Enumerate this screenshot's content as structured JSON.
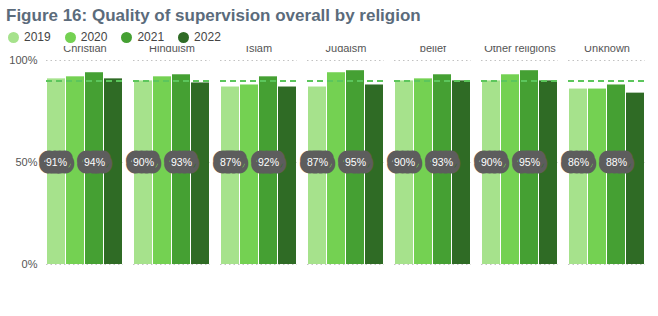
{
  "chart_data": {
    "type": "bar",
    "title": "Figure 16: Quality of supervision overall by religion",
    "categories": [
      "Christian",
      "Hinduism",
      "Islam",
      "Judaism",
      "No religious belief",
      "Other religions",
      "Unknown"
    ],
    "series": [
      {
        "name": "2019",
        "color": "#a6e28c",
        "values": [
          91,
          90,
          87,
          87,
          90,
          90,
          86
        ],
        "data_labels": true,
        "value_labels": [
          "91%",
          "90%",
          "87%",
          "87%",
          "90%",
          "90%",
          "86%"
        ]
      },
      {
        "name": "2020",
        "color": "#74d152",
        "values": [
          92,
          92,
          88,
          94,
          91,
          93,
          86
        ]
      },
      {
        "name": "2021",
        "color": "#45a033",
        "values": [
          94,
          93,
          92,
          95,
          93,
          95,
          88
        ],
        "data_labels": true,
        "value_labels": [
          "94%",
          "93%",
          "92%",
          "95%",
          "93%",
          "95%",
          "88%"
        ]
      },
      {
        "name": "2022",
        "color": "#2f6b25",
        "values": [
          91,
          89,
          87,
          88,
          90,
          90,
          84
        ]
      }
    ],
    "target": 90,
    "ylim": [
      0,
      100
    ],
    "yticks": [
      {
        "value": 0,
        "label": "0%"
      },
      {
        "value": 50,
        "label": "50%"
      },
      {
        "value": 100,
        "label": "100%"
      }
    ],
    "grid": true,
    "legend": "top-left"
  }
}
